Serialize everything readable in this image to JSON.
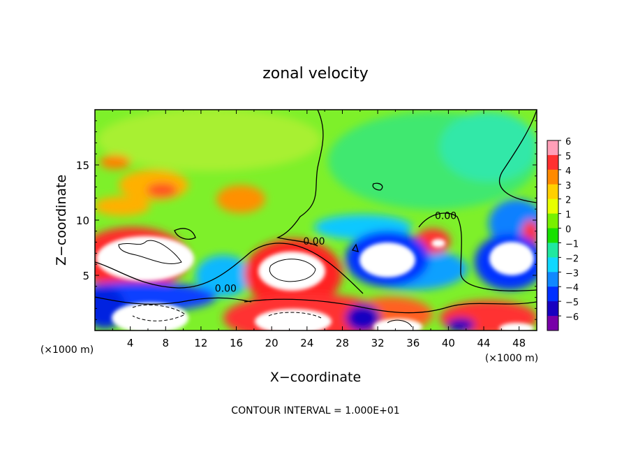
{
  "chart_data": {
    "type": "heatmap",
    "title": "zonal velocity",
    "xlabel": "X−coordinate",
    "ylabel": "Z−coordinate",
    "x_unit": "(×1000 m)",
    "x_unit_right": "(×1000 m)",
    "footnote": "CONTOUR INTERVAL = 1.000E+01",
    "xlim": [
      0,
      50
    ],
    "ylim": [
      0,
      20
    ],
    "xticks": [
      4,
      8,
      12,
      16,
      20,
      24,
      28,
      32,
      36,
      40,
      44,
      48
    ],
    "xtick_labels": [
      "4",
      "8",
      "12",
      "16",
      "20",
      "24",
      "28",
      "32",
      "36",
      "40",
      "44",
      "48"
    ],
    "yticks": [
      5,
      10,
      15
    ],
    "ytick_labels": [
      "5",
      "10",
      "15"
    ],
    "colorbar": {
      "ticks": [
        6,
        5,
        4,
        3,
        2,
        1,
        0,
        -1,
        -2,
        -3,
        -4,
        -5,
        -6
      ],
      "tick_labels": [
        "6",
        "5",
        "4",
        "3",
        "2",
        "1",
        "0",
        "−1",
        "−2",
        "−3",
        "−4",
        "−5",
        "−6"
      ],
      "colors": [
        "#ff9fb8",
        "#ff3030",
        "#ff8a00",
        "#ffd000",
        "#e8ff00",
        "#78f000",
        "#18e000",
        "#20e8a0",
        "#10d8ff",
        "#1088ff",
        "#0030ff",
        "#1800c0",
        "#7800a8"
      ]
    },
    "contour_labels": [
      {
        "text": "0.00",
        "x": 39.7,
        "y": 10.1
      },
      {
        "text": "0.00",
        "x": 24.8,
        "y": 7.8
      },
      {
        "text": "0.00",
        "x": 14.8,
        "y": 3.5
      }
    ],
    "features": [
      {
        "label": "strong positive core",
        "x": 10.5,
        "y": 8.3
      },
      {
        "label": "strong positive core",
        "x": 25.0,
        "y": 5.3
      },
      {
        "label": "strong negative core",
        "x": 34.6,
        "y": 6.2
      },
      {
        "label": "strong negative core",
        "x": 46.6,
        "y": 5.6
      },
      {
        "label": "positive maximum",
        "x": 13.5,
        "y": 12.5
      },
      {
        "label": "positive maximum",
        "x": 18.0,
        "y": 12.0
      }
    ]
  }
}
